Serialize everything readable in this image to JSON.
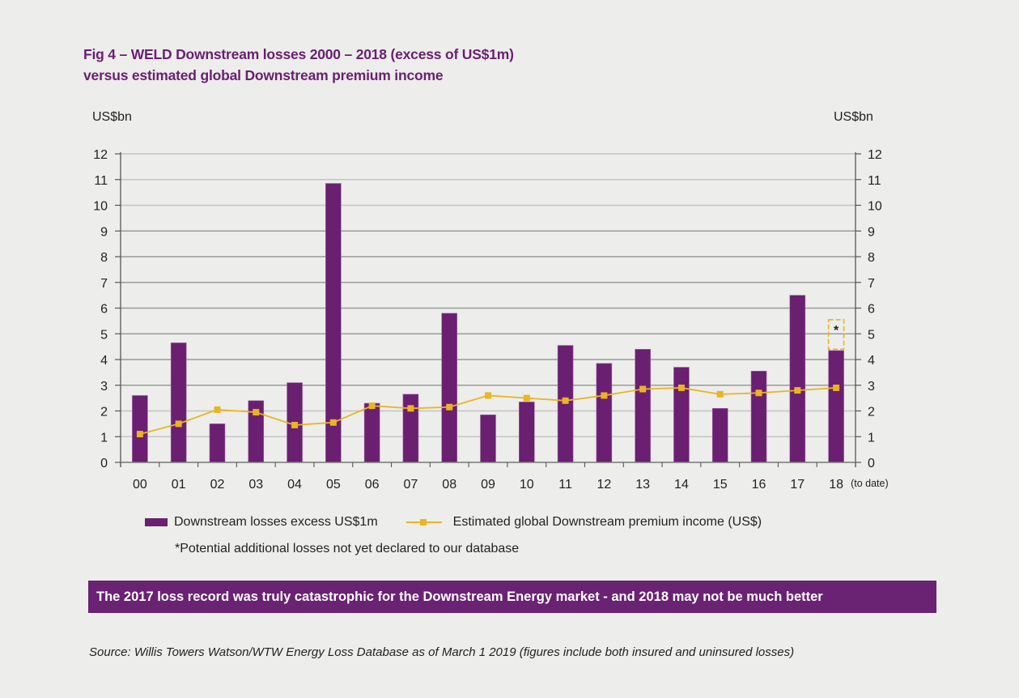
{
  "title": {
    "line1": "Fig 4 – WELD Downstream losses 2000 – 2018 (excess of US$1m)",
    "line2": "versus estimated global Downstream premium income"
  },
  "chart_data": {
    "type": "bar",
    "title": "Fig 4 – WELD Downstream losses 2000 – 2018 (excess of US$1m) versus estimated global Downstream premium income",
    "categories": [
      "00",
      "01",
      "02",
      "03",
      "04",
      "05",
      "06",
      "07",
      "08",
      "09",
      "10",
      "11",
      "12",
      "13",
      "14",
      "15",
      "16",
      "17",
      "18"
    ],
    "last_category_note": "(to date)",
    "ylabel_left": "US$bn",
    "ylabel_right": "US$bn",
    "ylim": [
      0,
      12
    ],
    "yticks": [
      0,
      1,
      2,
      3,
      4,
      5,
      6,
      7,
      8,
      9,
      10,
      11,
      12
    ],
    "grid": true,
    "series": [
      {
        "name": "Downstream losses excess US$1m",
        "type": "bar",
        "color": "#6a1f71",
        "values": [
          2.6,
          4.65,
          1.5,
          2.4,
          3.1,
          10.85,
          2.3,
          2.65,
          5.8,
          1.85,
          2.35,
          4.55,
          3.85,
          4.4,
          3.7,
          2.1,
          3.55,
          6.5,
          4.35
        ]
      },
      {
        "name": "Estimated global Downstream premium income (US$)",
        "type": "line",
        "color": "#eab422",
        "values": [
          1.1,
          1.5,
          2.05,
          1.95,
          1.45,
          1.55,
          2.2,
          2.1,
          2.15,
          2.6,
          2.5,
          2.4,
          2.6,
          2.85,
          2.9,
          2.65,
          2.7,
          2.8,
          2.9
        ]
      }
    ],
    "annotation": {
      "category": "18",
      "label": "*",
      "range": [
        4.4,
        5.55
      ],
      "style": "dashed-box",
      "color": "#eab422",
      "meaning": "*Potential additional losses not yet declared to our database"
    },
    "legend": "bottom"
  },
  "legend": {
    "bar_label": "Downstream losses excess US$1m",
    "line_label": "Estimated global Downstream premium income (US$)",
    "footnote": "*Potential additional losses not yet declared to our database"
  },
  "banner": "The 2017 loss record was truly catastrophic for the Downstream Energy market - and 2018 may not be much better",
  "source": "Source:  Willis Towers Watson/WTW Energy Loss Database as of March 1 2019 (figures include both insured and uninsured losses)"
}
